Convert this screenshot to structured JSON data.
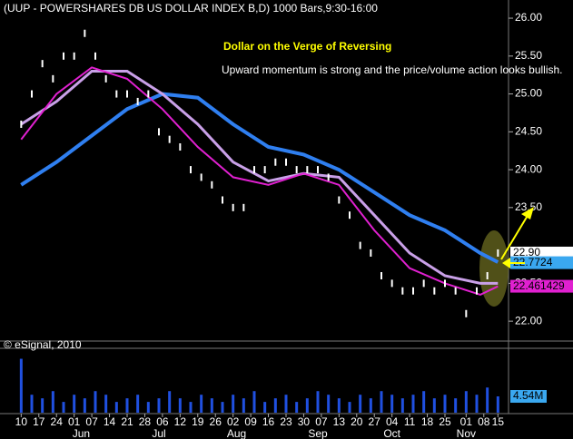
{
  "header": "(UUP - POWERSHARES DB US DOLLAR INDEX B,D) 1000 Bars,9:30-16:00",
  "credit": "© eSignal, 2010",
  "chart_data": {
    "type": "line",
    "title": "Dollar on the Verge of Reversing",
    "subtitle": "Upward momentum is strong and the price/volume action looks bullish.",
    "xlim": [
      -6,
      138
    ],
    "ylim": [
      21.75,
      26.24
    ],
    "xticks": [
      {
        "value": 0,
        "label": "10"
      },
      {
        "value": 5,
        "label": "17"
      },
      {
        "value": 10,
        "label": "24"
      },
      {
        "value": 15,
        "label": "01"
      },
      {
        "value": 20,
        "label": "07"
      },
      {
        "value": 25,
        "label": "14"
      },
      {
        "value": 30,
        "label": "21"
      },
      {
        "value": 35,
        "label": "28"
      },
      {
        "value": 40,
        "label": "06"
      },
      {
        "value": 45,
        "label": "12"
      },
      {
        "value": 50,
        "label": "19"
      },
      {
        "value": 55,
        "label": "26"
      },
      {
        "value": 60,
        "label": "02"
      },
      {
        "value": 65,
        "label": "09"
      },
      {
        "value": 70,
        "label": "16"
      },
      {
        "value": 75,
        "label": "23"
      },
      {
        "value": 80,
        "label": "30"
      },
      {
        "value": 85,
        "label": "07"
      },
      {
        "value": 90,
        "label": "13"
      },
      {
        "value": 95,
        "label": "20"
      },
      {
        "value": 100,
        "label": "27"
      },
      {
        "value": 105,
        "label": "04"
      },
      {
        "value": 110,
        "label": "11"
      },
      {
        "value": 115,
        "label": "18"
      },
      {
        "value": 120,
        "label": "25"
      },
      {
        "value": 126,
        "label": "01"
      },
      {
        "value": 131,
        "label": "08"
      },
      {
        "value": 135,
        "label": "15"
      }
    ],
    "months": [
      {
        "value": 17,
        "label": "Jun"
      },
      {
        "value": 39,
        "label": "Jul"
      },
      {
        "value": 61,
        "label": "Aug"
      },
      {
        "value": 84,
        "label": "Sep"
      },
      {
        "value": 105,
        "label": "Oct"
      },
      {
        "value": 126,
        "label": "Nov"
      }
    ],
    "yticks": [
      {
        "value": 26,
        "label": "26.00"
      },
      {
        "value": 25.5,
        "label": "25.50"
      },
      {
        "value": 25,
        "label": "25.00"
      },
      {
        "value": 24.5,
        "label": "24.50"
      },
      {
        "value": 24,
        "label": "24.00"
      },
      {
        "value": 23.5,
        "label": "23.50"
      },
      {
        "value": 22.5,
        "label": "22.50"
      },
      {
        "value": 22,
        "label": "22.00"
      }
    ],
    "series": [
      {
        "style": "bars",
        "color": "#ffffff",
        "x": [
          0,
          3,
          6,
          9,
          12,
          15,
          18,
          21,
          24,
          27,
          30,
          33,
          36,
          39,
          42,
          45,
          48,
          51,
          54,
          57,
          60,
          63,
          66,
          69,
          72,
          75,
          78,
          81,
          84,
          87,
          90,
          93,
          96,
          99,
          102,
          105,
          108,
          111,
          114,
          117,
          120,
          123,
          126,
          129,
          132,
          135
        ],
        "values": [
          24.6,
          25.0,
          25.4,
          25.2,
          25.5,
          25.5,
          25.8,
          25.5,
          25.2,
          25.0,
          25.0,
          24.9,
          25.0,
          24.5,
          24.4,
          24.3,
          24.0,
          23.9,
          23.8,
          23.6,
          23.5,
          23.5,
          24.0,
          24.0,
          24.1,
          24.1,
          24.0,
          24.0,
          24.0,
          23.9,
          23.6,
          23.4,
          23.0,
          22.9,
          22.6,
          22.5,
          22.4,
          22.4,
          22.5,
          22.4,
          22.5,
          22.4,
          22.1,
          22.4,
          22.6,
          22.9
        ]
      },
      {
        "color": "#2f7ff0",
        "width": 4,
        "x": [
          0,
          10,
          20,
          30,
          40,
          50,
          60,
          70,
          80,
          90,
          100,
          110,
          120,
          130,
          135
        ],
        "values": [
          23.8,
          24.1,
          24.45,
          24.8,
          25.0,
          24.95,
          24.6,
          24.3,
          24.2,
          24.0,
          23.7,
          23.4,
          23.2,
          22.9,
          22.78
        ]
      },
      {
        "color": "#c9a0e8",
        "width": 3,
        "x": [
          0,
          10,
          20,
          30,
          40,
          50,
          60,
          70,
          80,
          90,
          100,
          110,
          120,
          130,
          135
        ],
        "values": [
          24.6,
          24.9,
          25.3,
          25.3,
          25.0,
          24.6,
          24.1,
          23.85,
          23.95,
          23.9,
          23.4,
          22.9,
          22.6,
          22.5,
          22.5
        ]
      },
      {
        "color": "#e020d0",
        "width": 2,
        "x": [
          0,
          10,
          20,
          30,
          40,
          50,
          60,
          70,
          80,
          90,
          100,
          110,
          120,
          130,
          135
        ],
        "values": [
          24.4,
          25.0,
          25.35,
          25.2,
          24.8,
          24.3,
          23.9,
          23.8,
          23.95,
          23.8,
          23.2,
          22.7,
          22.5,
          22.35,
          22.46
        ]
      }
    ],
    "last_values": [
      {
        "value": 22.9,
        "label": "22.90",
        "color": "#ffffff"
      },
      {
        "value": 22.7724,
        "label": "22.7724",
        "color": "#3aa8f0"
      },
      {
        "value": 22.461429,
        "label": "22.461429",
        "color": "#e020d0"
      }
    ],
    "volume": {
      "color": "#2050e0",
      "ylim": [
        0,
        16.4
      ],
      "values": [
        15,
        5,
        4,
        6,
        3,
        5,
        4,
        6,
        5,
        3,
        4,
        5,
        3,
        4,
        6,
        4,
        3,
        5,
        4,
        3,
        5,
        4,
        6,
        3,
        4,
        5,
        3,
        4,
        6,
        5,
        4,
        3,
        5,
        4,
        6,
        5,
        4,
        5,
        6,
        4,
        5,
        4,
        6,
        5,
        7,
        4.54
      ],
      "last": {
        "value": 4.54,
        "label": "4.54M"
      }
    }
  }
}
